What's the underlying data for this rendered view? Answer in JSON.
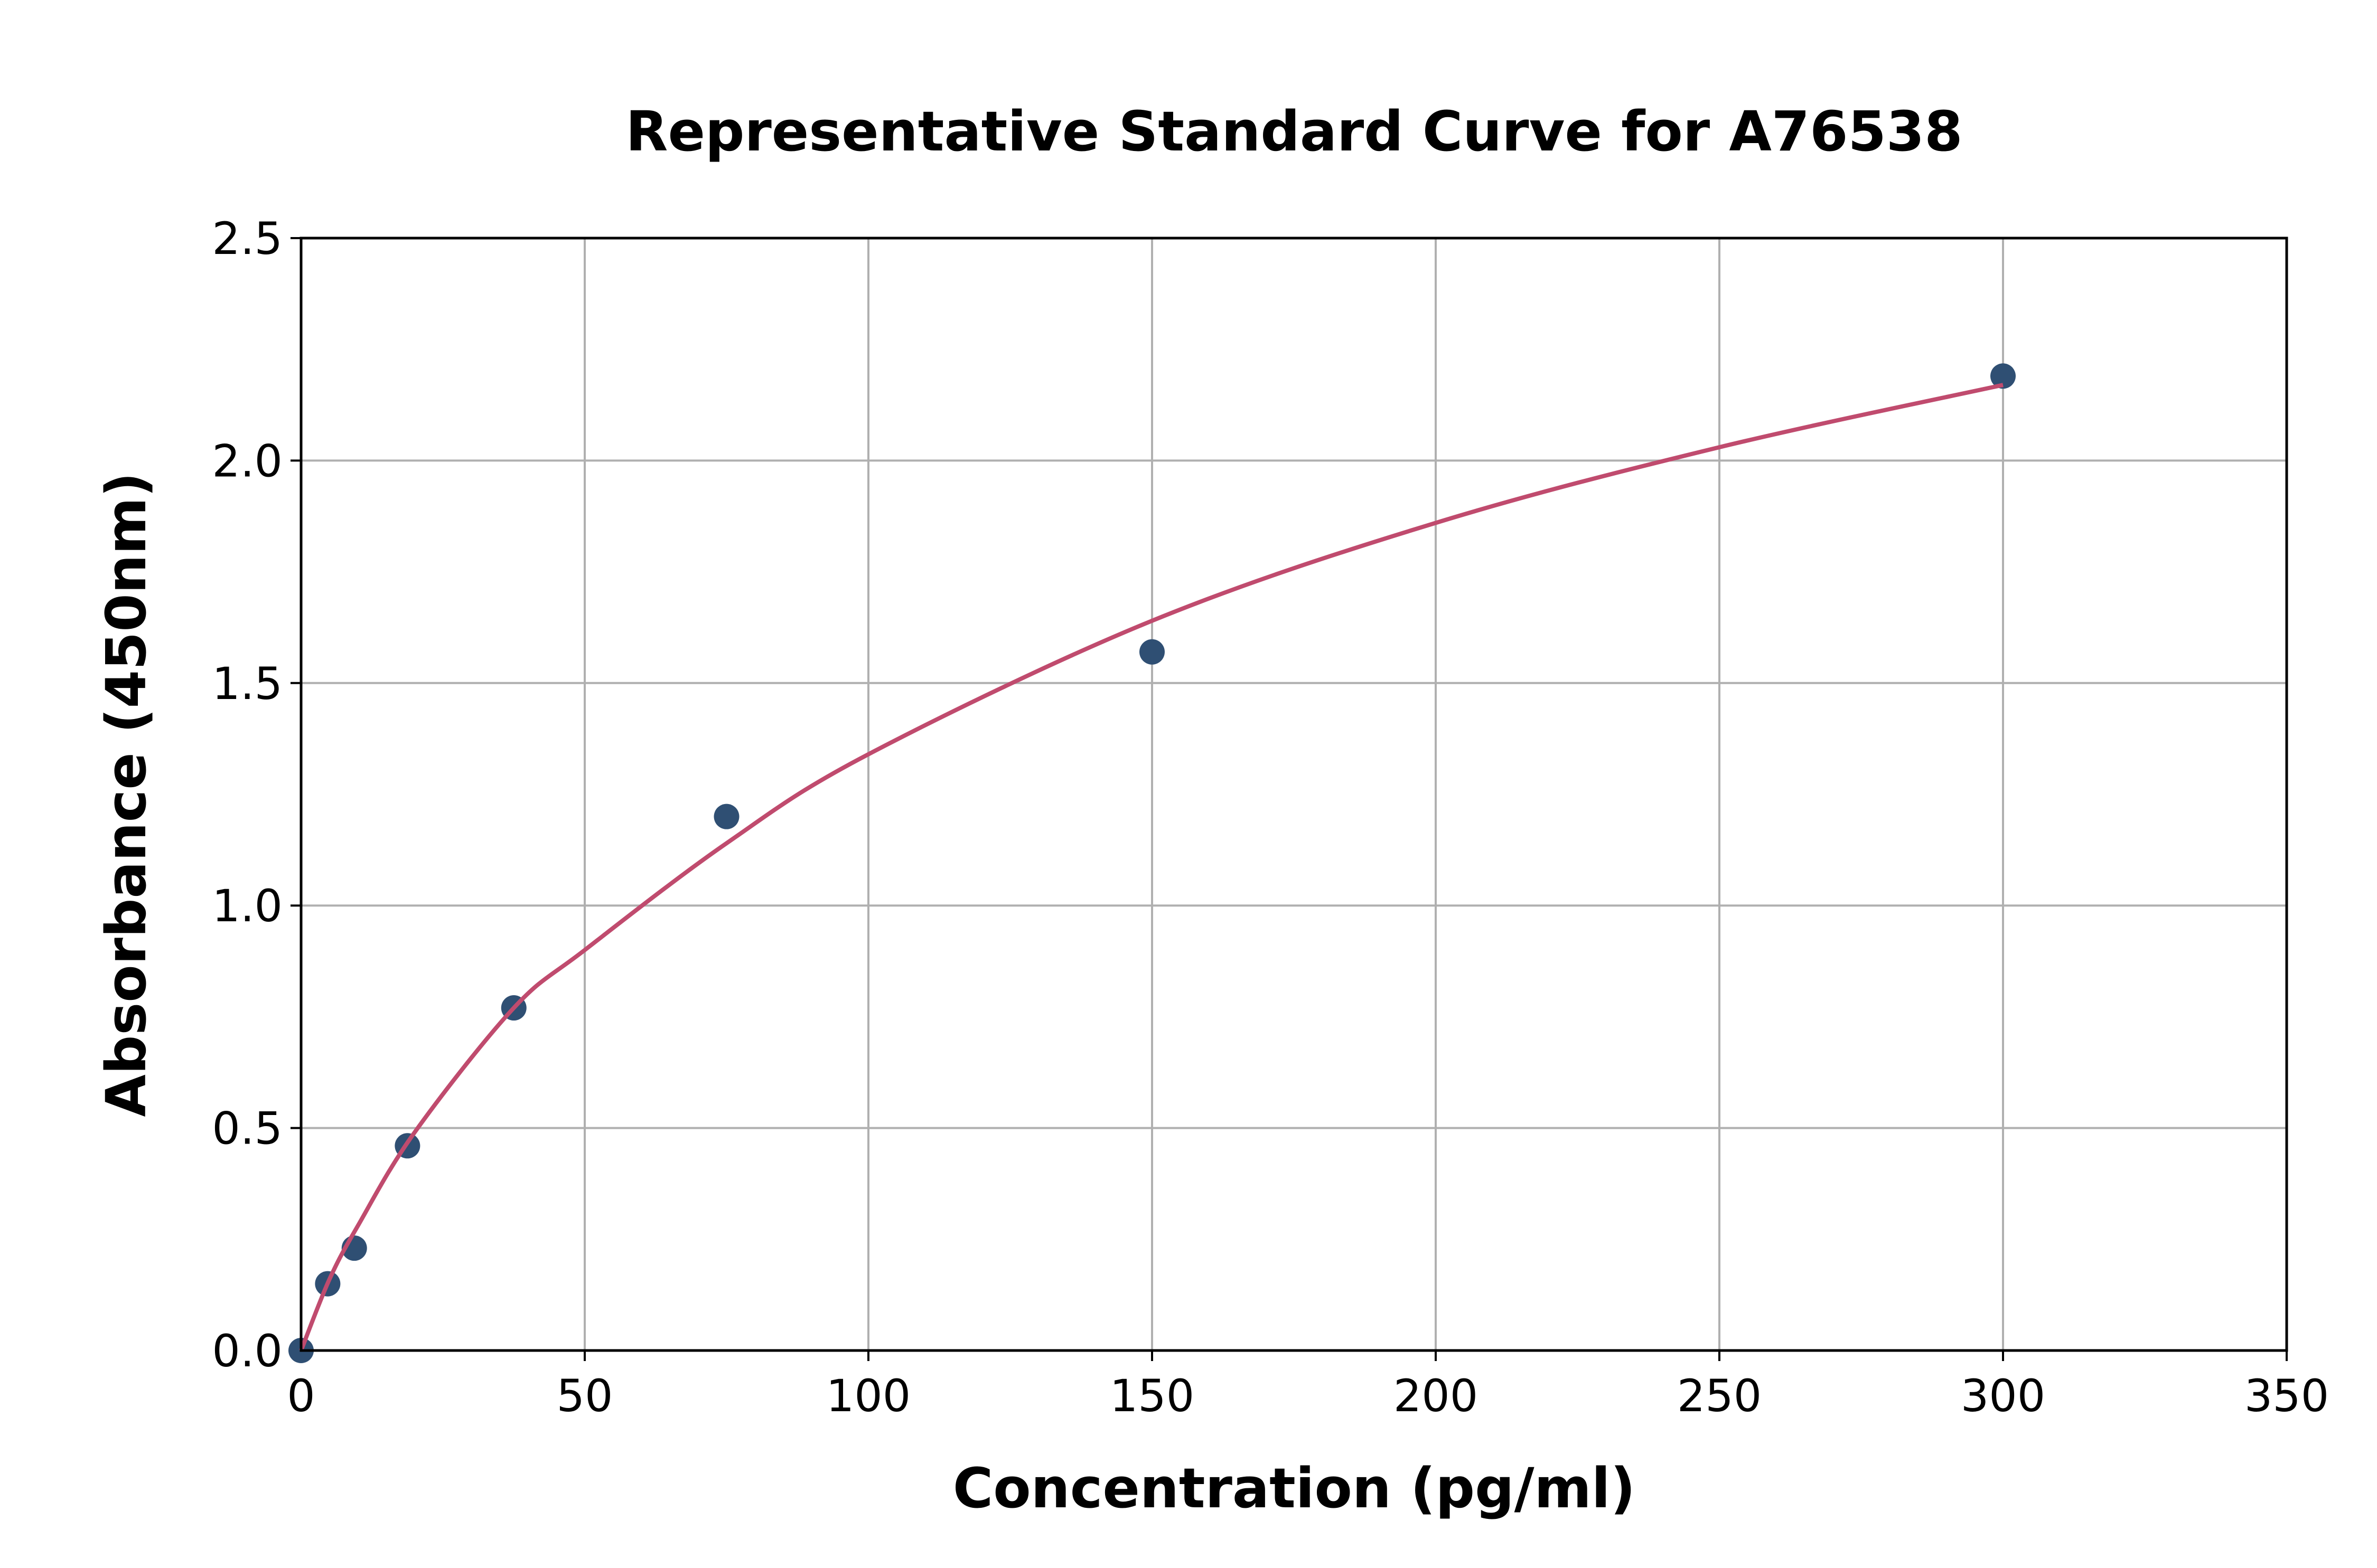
{
  "chart_data": {
    "type": "scatter",
    "title": "Representative Standard Curve for A76538",
    "xlabel": "Concentration (pg/ml)",
    "ylabel": "Absorbance (450nm)",
    "xlim": [
      0,
      350
    ],
    "ylim": [
      0,
      2.5
    ],
    "xticks": [
      "0",
      "50",
      "100",
      "150",
      "200",
      "250",
      "300",
      "350"
    ],
    "yticks": [
      "0.0",
      "0.5",
      "1.0",
      "1.5",
      "2.0",
      "2.5"
    ],
    "grid": true,
    "points": {
      "x": [
        0,
        4.69,
        9.38,
        18.75,
        37.5,
        75,
        150,
        300
      ],
      "y": [
        0.0,
        0.15,
        0.23,
        0.46,
        0.77,
        1.2,
        1.57,
        2.19
      ]
    },
    "fit_curve": {
      "x": [
        0,
        5,
        10,
        20,
        37.5,
        50,
        75,
        100,
        150,
        200,
        250,
        300
      ],
      "y": [
        0.0,
        0.16,
        0.28,
        0.49,
        0.77,
        0.9,
        1.14,
        1.34,
        1.64,
        1.86,
        2.03,
        2.17
      ]
    },
    "colors": {
      "points": "#2f4f73",
      "curve": "#c04b6e",
      "grid": "#b0b0b0"
    }
  }
}
